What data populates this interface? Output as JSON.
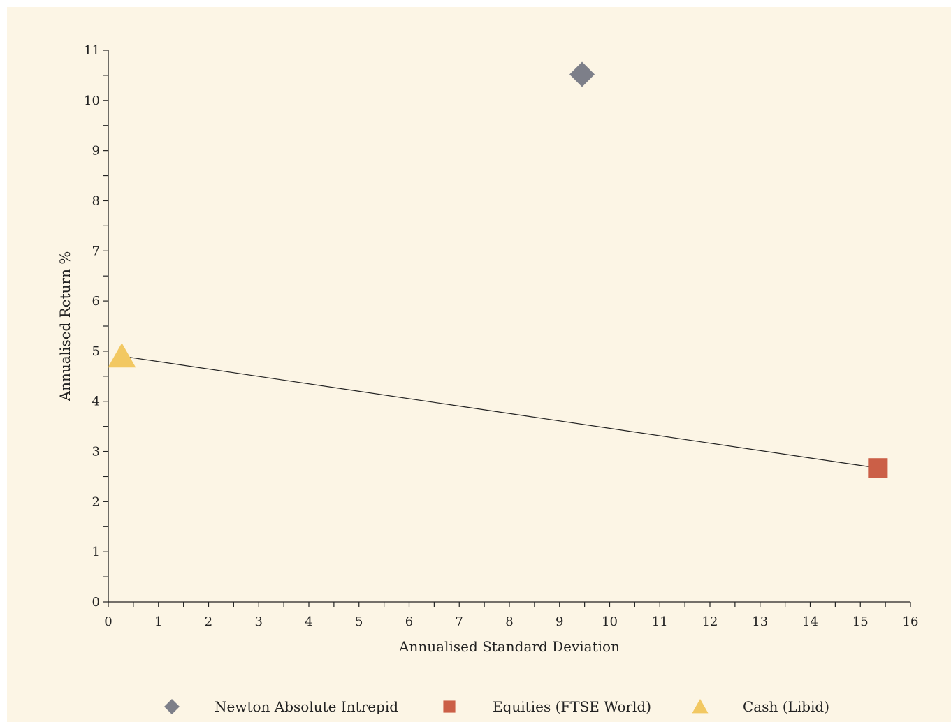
{
  "chart_data": {
    "type": "scatter",
    "xlabel": "Annualised Standard Deviation",
    "ylabel": "Annualised Return %",
    "xlim": [
      0,
      16
    ],
    "ylim": [
      0,
      11
    ],
    "xticks": [
      "0",
      "1",
      "2",
      "3",
      "4",
      "5",
      "6",
      "7",
      "8",
      "9",
      "10",
      "11",
      "12",
      "13",
      "14",
      "15",
      "16"
    ],
    "yticks": [
      "0",
      "1",
      "2",
      "3",
      "4",
      "5",
      "6",
      "7",
      "8",
      "9",
      "10",
      "11"
    ],
    "series": [
      {
        "name": "Newton Absolute Intrepid",
        "marker": "diamond",
        "color": "#7d7f89",
        "x": 9.45,
        "y": 10.52
      },
      {
        "name": "Equities (FTSE World)",
        "marker": "square",
        "color": "#cb5f47",
        "x": 15.35,
        "y": 2.67
      },
      {
        "name": "Cash (Libid)",
        "marker": "triangle",
        "color": "#f2c862",
        "x": 0.27,
        "y": 4.9
      }
    ],
    "line": {
      "from_series": "Cash (Libid)",
      "to_series": "Equities (FTSE World)",
      "color": "#222222"
    },
    "legend_position": "bottom",
    "grid": false
  }
}
